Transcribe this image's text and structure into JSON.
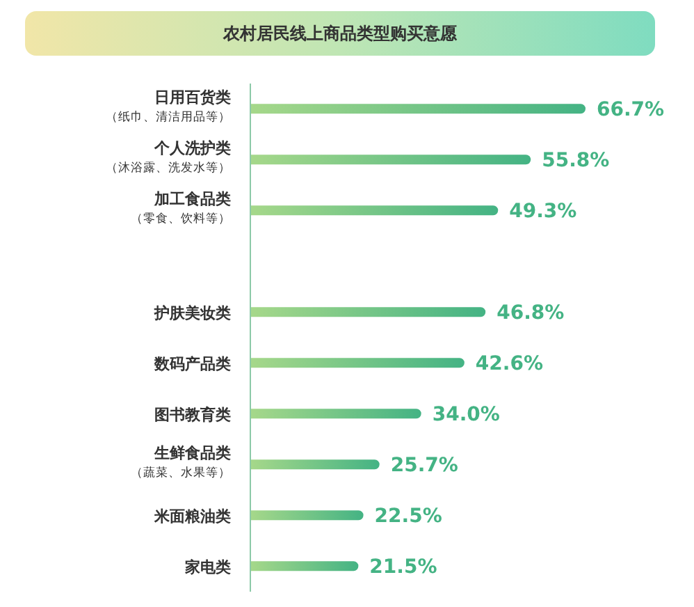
{
  "chart_data": {
    "type": "bar",
    "orientation": "horizontal",
    "title": "农村居民线上商品类型购买意愿",
    "categories": [
      "日用百货类（纸巾、清洁用品等）",
      "个人洗护类（沐浴露、洗发水等）",
      "加工食品类（零食、饮料等）",
      null,
      "护肤美妆类",
      "数码产品类",
      "图书教育类",
      "生鲜食品类（蔬菜、水果等）",
      "米面粮油类",
      "家电类"
    ],
    "values": [
      66.7,
      55.8,
      49.3,
      null,
      46.8,
      42.6,
      34.0,
      25.7,
      22.5,
      21.5
    ],
    "value_labels": [
      "66.7%",
      "55.8%",
      "49.3%",
      null,
      "46.8%",
      "42.6%",
      "34.0%",
      "25.7%",
      "22.5%",
      "21.5%"
    ],
    "color": "#44b384",
    "tick_labels": "y"
  }
}
